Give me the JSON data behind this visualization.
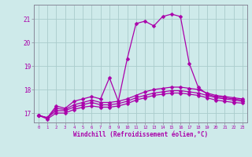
{
  "xlabel": "Windchill (Refroidissement éolien,°C)",
  "background_color": "#ceeaea",
  "grid_color": "#aacccc",
  "line_color": "#aa00aa",
  "axis_color": "#888899",
  "xlim": [
    -0.5,
    23.5
  ],
  "ylim": [
    16.6,
    21.6
  ],
  "xticks": [
    0,
    1,
    2,
    3,
    4,
    5,
    6,
    7,
    8,
    9,
    10,
    11,
    12,
    13,
    14,
    15,
    16,
    17,
    18,
    19,
    20,
    21,
    22,
    23
  ],
  "yticks": [
    17,
    18,
    19,
    20,
    21
  ],
  "x": [
    0,
    1,
    2,
    3,
    4,
    5,
    6,
    7,
    8,
    9,
    10,
    11,
    12,
    13,
    14,
    15,
    16,
    17,
    18,
    19,
    20,
    21,
    22,
    23
  ],
  "series": [
    [
      16.9,
      16.8,
      17.3,
      17.2,
      17.5,
      17.6,
      17.7,
      17.6,
      18.5,
      17.5,
      19.3,
      20.8,
      20.9,
      20.7,
      21.1,
      21.2,
      21.1,
      19.1,
      18.1,
      17.8,
      17.7,
      17.65,
      17.6,
      17.55
    ],
    [
      16.9,
      16.8,
      17.2,
      17.15,
      17.35,
      17.45,
      17.55,
      17.45,
      17.45,
      17.5,
      17.6,
      17.75,
      17.9,
      18.0,
      18.05,
      18.1,
      18.1,
      18.05,
      18.0,
      17.85,
      17.75,
      17.7,
      17.65,
      17.6
    ],
    [
      16.9,
      16.8,
      17.1,
      17.1,
      17.25,
      17.35,
      17.45,
      17.35,
      17.35,
      17.4,
      17.5,
      17.65,
      17.75,
      17.85,
      17.9,
      17.95,
      17.95,
      17.9,
      17.85,
      17.75,
      17.65,
      17.6,
      17.55,
      17.5
    ],
    [
      16.9,
      16.75,
      17.0,
      17.0,
      17.15,
      17.25,
      17.3,
      17.25,
      17.25,
      17.3,
      17.4,
      17.55,
      17.65,
      17.75,
      17.8,
      17.85,
      17.85,
      17.8,
      17.75,
      17.65,
      17.55,
      17.5,
      17.45,
      17.42
    ]
  ],
  "marker": "D",
  "markersize": 2.5,
  "linewidth": 0.9
}
